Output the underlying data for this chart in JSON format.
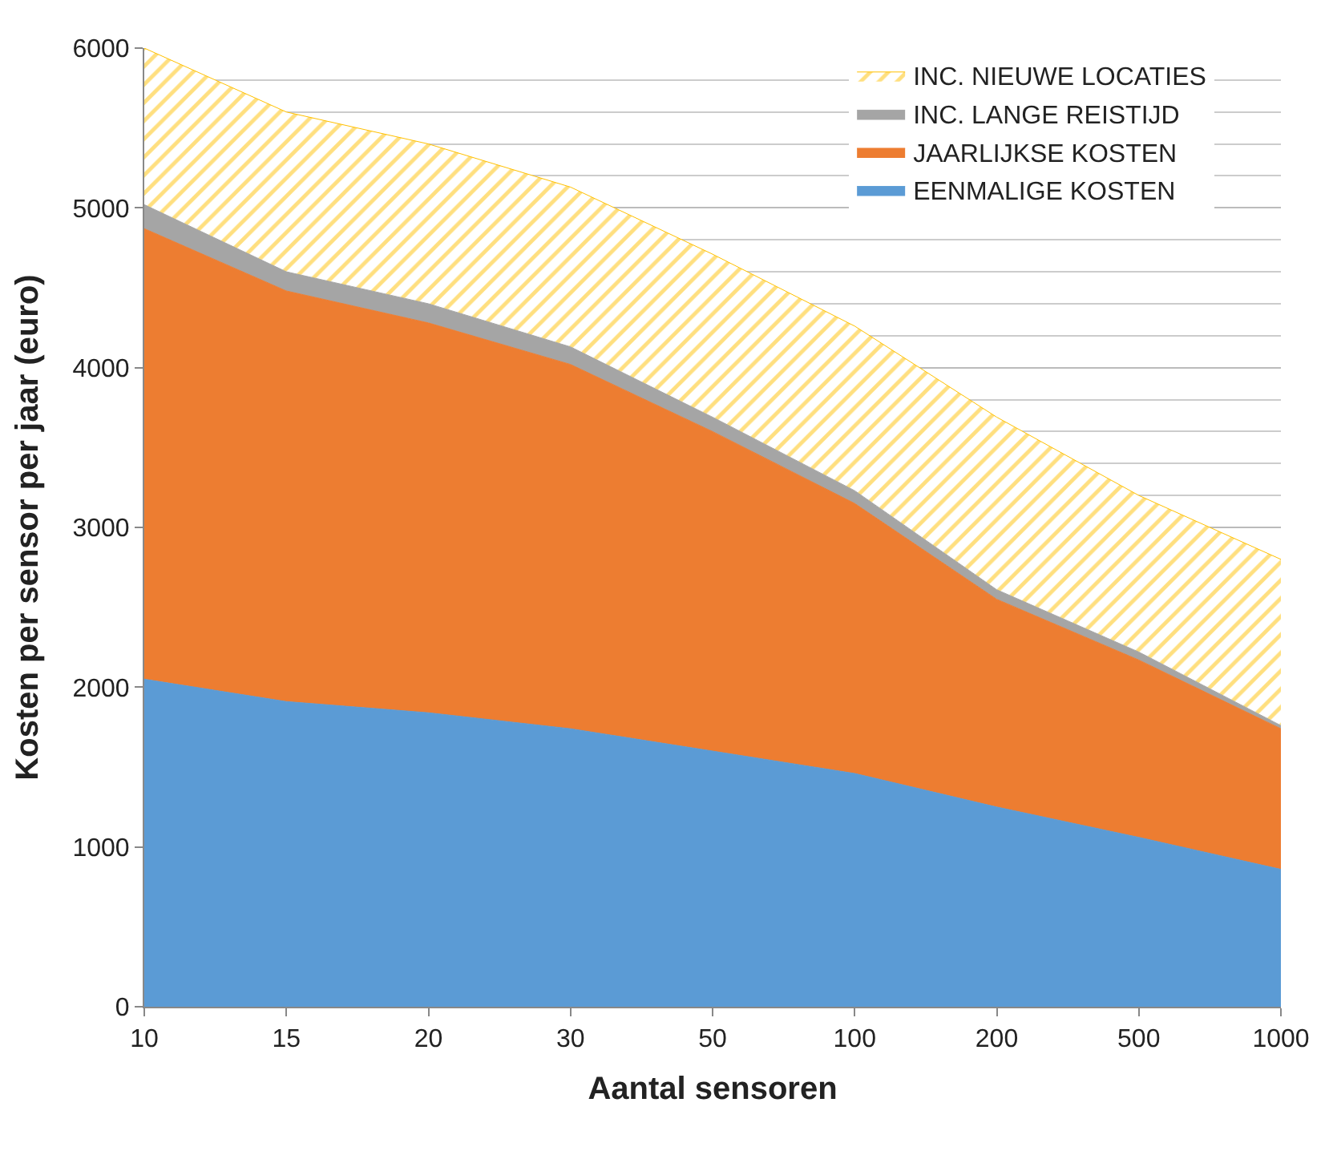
{
  "chart_data": {
    "type": "area",
    "stacked": true,
    "xlabel": "Aantal sensoren",
    "ylabel": "Kosten per sensor per jaar (euro)",
    "categories": [
      "10",
      "15",
      "20",
      "30",
      "50",
      "100",
      "200",
      "500",
      "1000"
    ],
    "ylim": [
      0,
      6000
    ],
    "yticks": [
      0,
      1000,
      2000,
      3000,
      4000,
      5000,
      6000
    ],
    "grid": "y",
    "legend": "top right",
    "series": [
      {
        "name": "EENMALIGE KOSTEN",
        "color": "#5b9bd5",
        "values": [
          2050,
          1910,
          1840,
          1740,
          1600,
          1460,
          1250,
          1060,
          860
        ]
      },
      {
        "name": "JAARLIJKSE KOSTEN",
        "color": "#ed7d31",
        "values": [
          2820,
          2570,
          2440,
          2280,
          2000,
          1690,
          1300,
          1110,
          880
        ]
      },
      {
        "name": "INC. LANGE REISTIJD",
        "color": "#a5a5a5",
        "values": [
          150,
          120,
          120,
          110,
          90,
          80,
          60,
          50,
          20
        ]
      },
      {
        "name": "INC. NIEUWE LOCATIES",
        "color": "#ffc000",
        "values": [
          980,
          1000,
          1000,
          1000,
          1020,
          1030,
          1080,
          980,
          1040
        ]
      }
    ]
  }
}
